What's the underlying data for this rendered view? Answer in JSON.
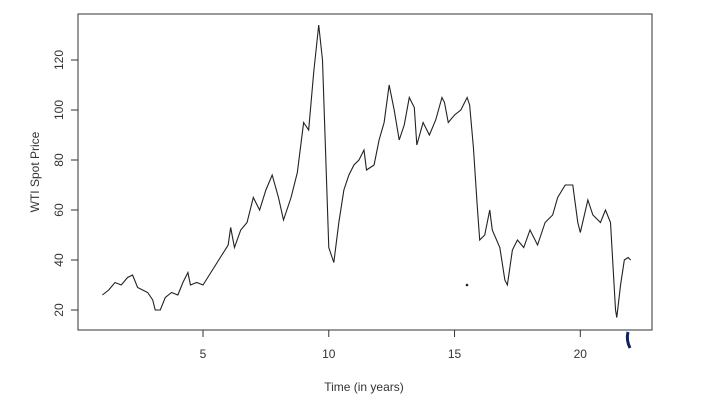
{
  "chart_data": {
    "type": "line",
    "xlabel": "Time (in years)",
    "ylabel": "WTI Spot Price",
    "x": [
      1.0,
      1.25,
      1.5,
      1.75,
      2.0,
      2.2,
      2.4,
      2.6,
      2.8,
      3.0,
      3.1,
      3.3,
      3.5,
      3.75,
      4.0,
      4.2,
      4.4,
      4.5,
      4.75,
      5.0,
      5.25,
      5.5,
      5.75,
      6.0,
      6.1,
      6.25,
      6.5,
      6.75,
      7.0,
      7.25,
      7.5,
      7.75,
      8.0,
      8.2,
      8.5,
      8.75,
      9.0,
      9.2,
      9.4,
      9.6,
      9.75,
      9.9,
      10.0,
      10.2,
      10.4,
      10.6,
      10.8,
      11.0,
      11.2,
      11.4,
      11.5,
      11.8,
      12.0,
      12.2,
      12.4,
      12.6,
      12.8,
      13.0,
      13.2,
      13.4,
      13.5,
      13.75,
      14.0,
      14.25,
      14.5,
      14.6,
      14.75,
      15.0,
      15.25,
      15.5,
      15.6,
      15.75,
      15.9,
      16.0,
      16.2,
      16.4,
      16.5,
      16.8,
      17.0,
      17.1,
      17.3,
      17.5,
      17.75,
      18.0,
      18.3,
      18.6,
      18.9,
      19.1,
      19.4,
      19.7,
      19.9,
      20.0,
      20.3,
      20.5,
      20.8,
      21.0,
      21.2,
      21.4,
      21.45,
      21.6,
      21.75,
      21.9,
      22.0
    ],
    "series": [
      {
        "name": "WTI",
        "color": "#222222",
        "values": [
          26,
          28,
          31,
          30,
          33,
          34,
          29,
          28,
          27,
          24,
          20,
          20,
          25,
          27,
          26,
          31,
          35,
          30,
          31,
          30,
          34,
          38,
          42,
          46,
          53,
          45,
          52,
          55,
          65,
          60,
          68,
          74,
          65,
          56,
          65,
          75,
          95,
          92,
          115,
          134,
          120,
          75,
          45,
          39,
          55,
          68,
          74,
          78,
          80,
          84,
          76,
          78,
          88,
          95,
          110,
          100,
          88,
          94,
          105,
          101,
          86,
          95,
          90,
          96,
          105,
          103,
          95,
          98,
          100,
          105,
          102,
          85,
          62,
          48,
          50,
          60,
          52,
          45,
          32,
          30,
          44,
          48,
          45,
          52,
          46,
          55,
          58,
          65,
          70,
          70,
          55,
          51,
          64,
          58,
          55,
          60,
          55,
          20,
          17,
          30,
          40,
          41,
          40
        ]
      }
    ],
    "xlim": [
      0.03,
      22.85
    ],
    "ylim": [
      12,
      138.4
    ],
    "xticks": [
      5,
      10,
      15,
      20
    ],
    "yticks": [
      20,
      40,
      60,
      80,
      100,
      120
    ]
  }
}
